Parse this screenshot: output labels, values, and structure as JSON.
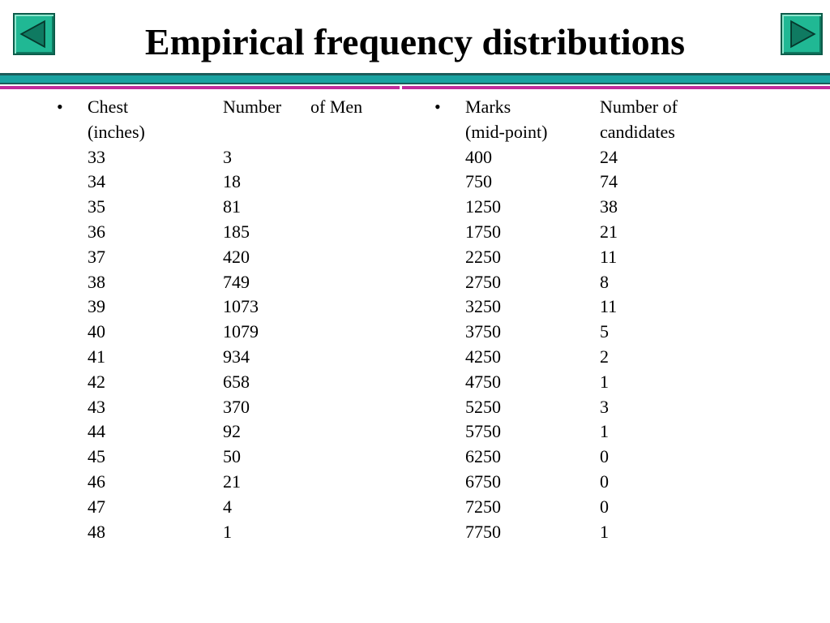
{
  "title": "Empirical frequency distributions",
  "nav": {
    "prev_icon": "triangle-left-icon",
    "next_icon": "triangle-right-icon",
    "button_color": "#20b894"
  },
  "colors": {
    "rule_dark": "#1b5c5a",
    "rule_teal": "#19a3a1",
    "rule_magenta": "#c02b9c"
  },
  "left_table": {
    "bullet": "•",
    "header": {
      "col1_line1": "Chest",
      "col1_line2": "(inches)",
      "col2": "Number",
      "col3": "of Men"
    },
    "rows": [
      {
        "chest": "33",
        "count": "3"
      },
      {
        "chest": "34",
        "count": "18"
      },
      {
        "chest": "35",
        "count": "81"
      },
      {
        "chest": "36",
        "count": "185"
      },
      {
        "chest": "37",
        "count": "420"
      },
      {
        "chest": "38",
        "count": "749"
      },
      {
        "chest": "39",
        "count": "1073"
      },
      {
        "chest": "40",
        "count": "1079"
      },
      {
        "chest": "41",
        "count": "934"
      },
      {
        "chest": "42",
        "count": "658"
      },
      {
        "chest": "43",
        "count": "370"
      },
      {
        "chest": "44",
        "count": "92"
      },
      {
        "chest": "45",
        "count": "50"
      },
      {
        "chest": "46",
        "count": "21"
      },
      {
        "chest": "47",
        "count": "4"
      },
      {
        "chest": "48",
        "count": "1"
      }
    ]
  },
  "right_table": {
    "bullet": "•",
    "header": {
      "col1_line1": "Marks",
      "col1_line2": "(mid-point)",
      "col2_line1": "Number of",
      "col2_line2": "candidates"
    },
    "rows": [
      {
        "marks": "400",
        "count": "24"
      },
      {
        "marks": "750",
        "count": "74"
      },
      {
        "marks": "1250",
        "count": "38"
      },
      {
        "marks": "1750",
        "count": "21"
      },
      {
        "marks": "2250",
        "count": "11"
      },
      {
        "marks": "2750",
        "count": "8"
      },
      {
        "marks": "3250",
        "count": "11"
      },
      {
        "marks": "3750",
        "count": "5"
      },
      {
        "marks": "4250",
        "count": "2"
      },
      {
        "marks": "4750",
        "count": "1"
      },
      {
        "marks": "5250",
        "count": "3"
      },
      {
        "marks": "5750",
        "count": "1"
      },
      {
        "marks": "6250",
        "count": "0"
      },
      {
        "marks": "6750",
        "count": "0"
      },
      {
        "marks": "7250",
        "count": "0"
      },
      {
        "marks": "7750",
        "count": "1"
      }
    ]
  }
}
